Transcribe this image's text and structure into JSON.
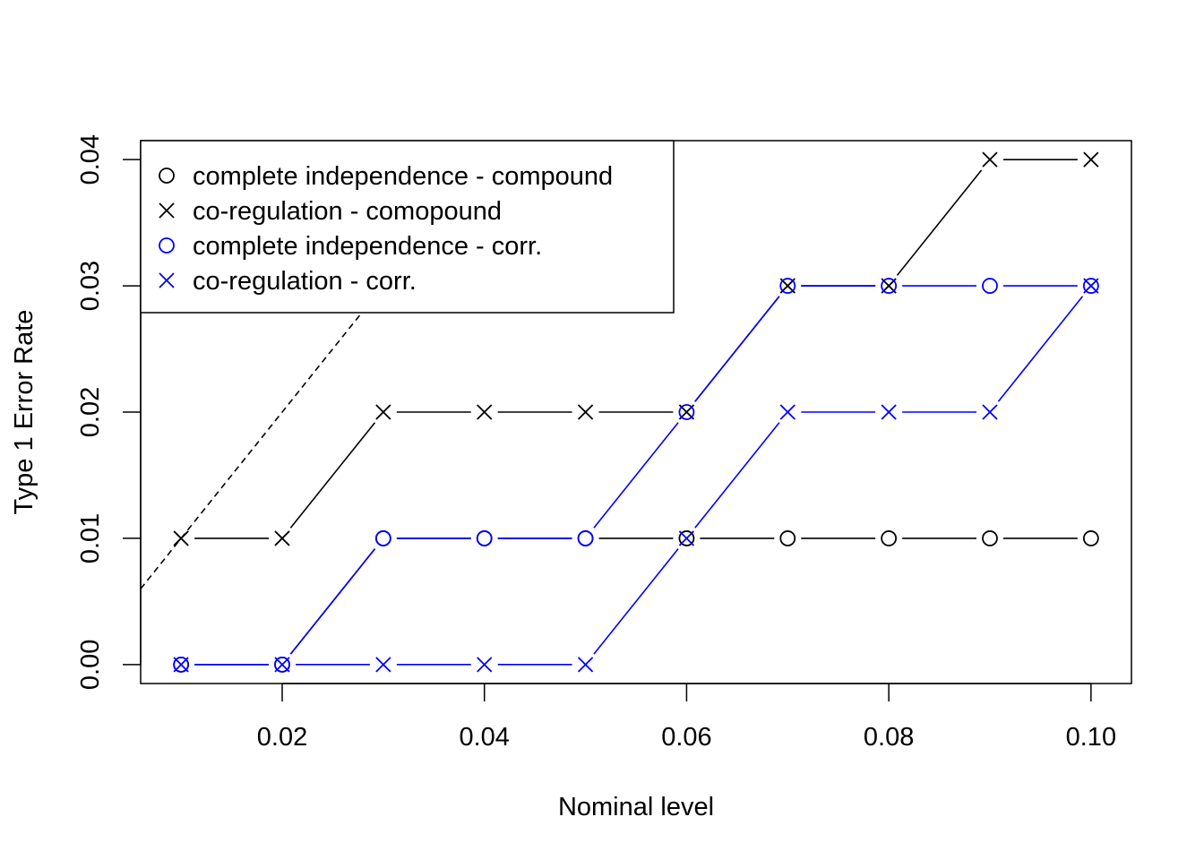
{
  "chart_data": {
    "type": "line",
    "title": "",
    "xlabel": "Nominal level",
    "ylabel": "Type 1 Error Rate",
    "xlim": [
      0.006,
      0.104
    ],
    "ylim": [
      -0.0015,
      0.0415
    ],
    "x_ticks": [
      0.02,
      0.04,
      0.06,
      0.08,
      0.1
    ],
    "x_tick_labels": [
      "0.02",
      "0.04",
      "0.06",
      "0.08",
      "0.10"
    ],
    "y_ticks": [
      0.0,
      0.01,
      0.02,
      0.03,
      0.04
    ],
    "y_tick_labels": [
      "0.00",
      "0.01",
      "0.02",
      "0.03",
      "0.04"
    ],
    "grid": false,
    "legend_position": "top-left",
    "x": [
      0.01,
      0.02,
      0.03,
      0.04,
      0.05,
      0.06,
      0.07,
      0.08,
      0.09,
      0.1
    ],
    "reference_line": {
      "style": "dashed",
      "color": "#000000",
      "slope": 1,
      "intercept": 0
    },
    "series": [
      {
        "name": "complete independence - compound",
        "color": "#000000",
        "marker": "circle",
        "values": [
          0.0,
          0.0,
          0.01,
          0.01,
          0.01,
          0.01,
          0.01,
          0.01,
          0.01,
          0.01
        ]
      },
      {
        "name": "co-regulation - comopound",
        "color": "#000000",
        "marker": "cross",
        "values": [
          0.01,
          0.01,
          0.02,
          0.02,
          0.02,
          0.02,
          0.03,
          0.03,
          0.04,
          0.04
        ]
      },
      {
        "name": "complete independence - corr.",
        "color": "#0000ff",
        "marker": "circle",
        "values": [
          0.0,
          0.0,
          0.01,
          0.01,
          0.01,
          0.02,
          0.03,
          0.03,
          0.03,
          0.03
        ]
      },
      {
        "name": "co-regulation - corr.",
        "color": "#0000ff",
        "marker": "cross",
        "values": [
          0.0,
          0.0,
          0.0,
          0.0,
          0.0,
          0.01,
          0.02,
          0.02,
          0.02,
          0.03
        ]
      }
    ]
  }
}
